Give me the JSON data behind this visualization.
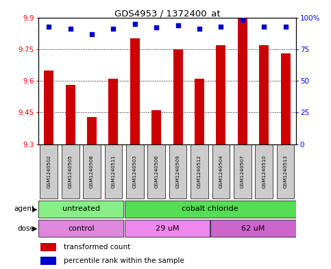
{
  "title": "GDS4953 / 1372400_at",
  "samples": [
    "GSM1240502",
    "GSM1240505",
    "GSM1240508",
    "GSM1240511",
    "GSM1240503",
    "GSM1240506",
    "GSM1240509",
    "GSM1240512",
    "GSM1240504",
    "GSM1240507",
    "GSM1240510",
    "GSM1240513"
  ],
  "bar_values": [
    9.65,
    9.58,
    9.43,
    9.61,
    9.8,
    9.46,
    9.75,
    9.61,
    9.77,
    9.9,
    9.77,
    9.73
  ],
  "dot_values": [
    93,
    91,
    87,
    91,
    95,
    92,
    94,
    91,
    93,
    98,
    93,
    93
  ],
  "ymin": 9.3,
  "ymax": 9.9,
  "yticks": [
    9.3,
    9.45,
    9.6,
    9.75,
    9.9
  ],
  "right_yticks": [
    0,
    25,
    50,
    75,
    100
  ],
  "bar_color": "#cc0000",
  "dot_color": "#0000cc",
  "agent_groups": [
    {
      "label": "untreated",
      "start": 0,
      "end": 4,
      "color": "#88ee88"
    },
    {
      "label": "cobalt chloride",
      "start": 4,
      "end": 12,
      "color": "#55dd55"
    }
  ],
  "dose_groups": [
    {
      "label": "control",
      "start": 0,
      "end": 4,
      "color": "#dd88dd"
    },
    {
      "label": "29 uM",
      "start": 4,
      "end": 8,
      "color": "#ee88ee"
    },
    {
      "label": "62 uM",
      "start": 8,
      "end": 12,
      "color": "#cc66cc"
    }
  ],
  "legend_bar": "transformed count",
  "legend_dot": "percentile rank within the sample",
  "label_bg_color": "#cccccc"
}
